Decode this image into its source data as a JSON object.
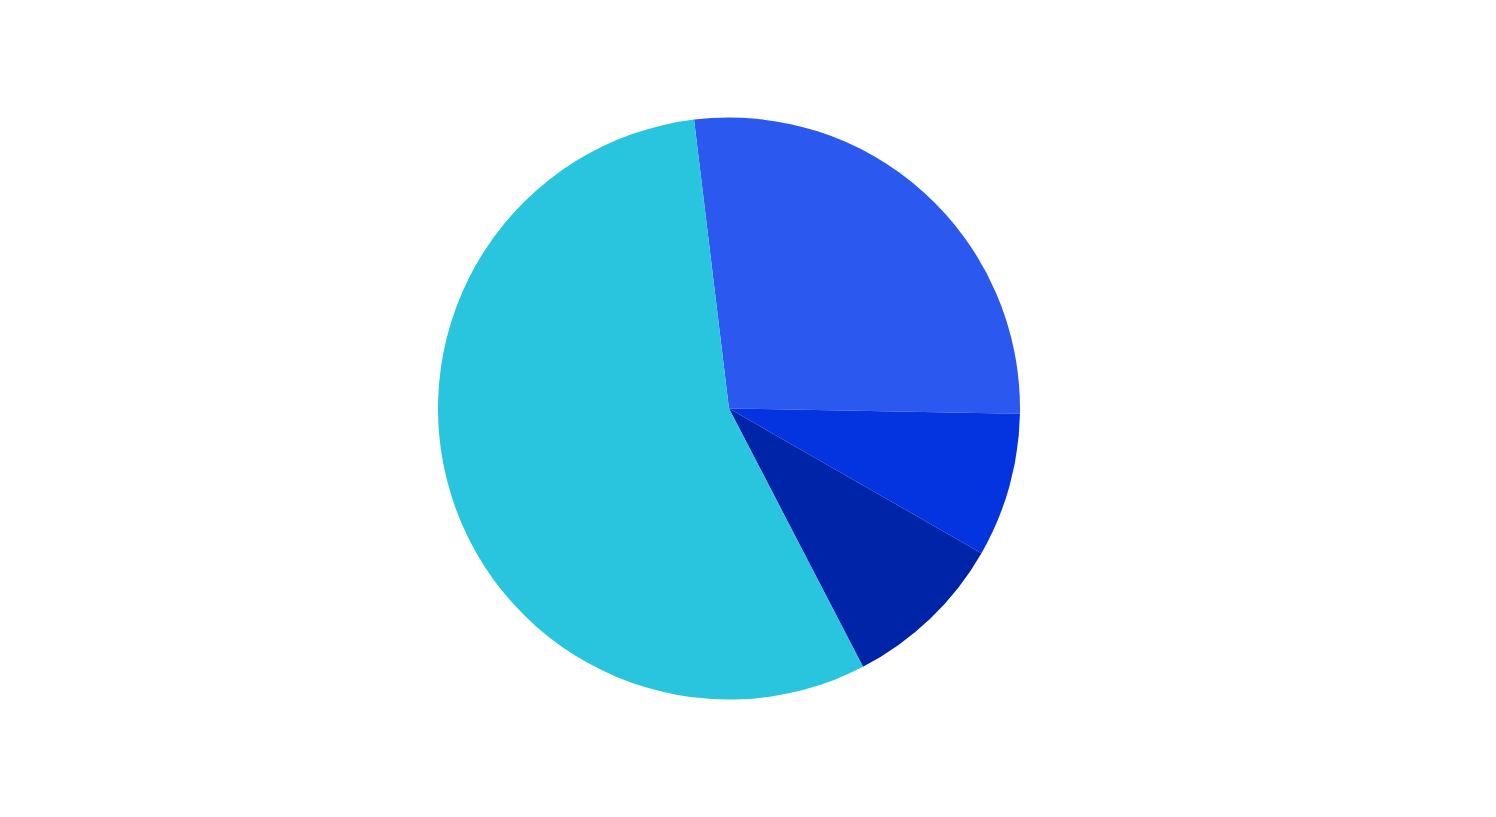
{
  "chart_data": {
    "type": "pie",
    "categories": [
      null,
      null,
      null,
      null
    ],
    "values": [
      27.2,
      8,
      9.1,
      55.7
    ],
    "colors": [
      "#2b59ef",
      "#0433e0",
      "#0024a8",
      "#29c4de"
    ],
    "legend": false
  }
}
